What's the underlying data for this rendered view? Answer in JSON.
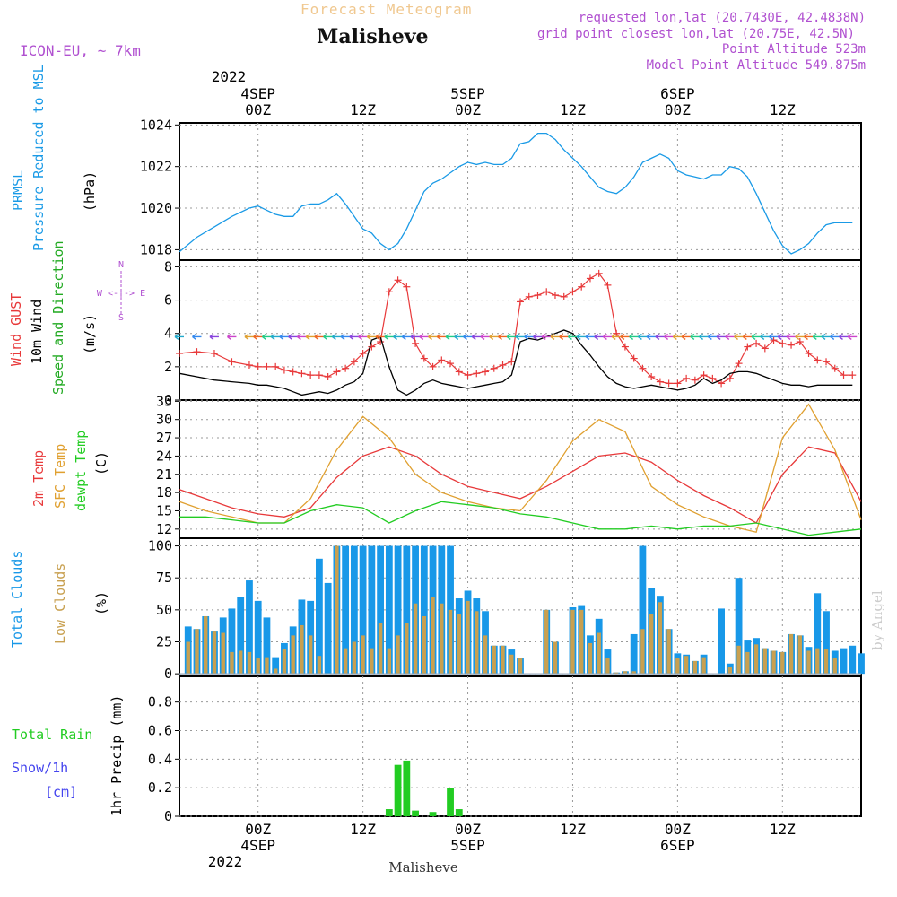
{
  "header": {
    "product": "Forecast Meteogram",
    "location": "Malisheve",
    "model": "ICON-EU, ~ 7km",
    "requested": "requested lon,lat (20.7430E, 42.4838N)",
    "grid_point": "grid point closest lon,lat (20.75E, 42.5N)",
    "point_altitude": "Point Altitude 523m",
    "model_altitude": "Model Point Altitude 549.875m"
  },
  "footer": {
    "location": "Malisheve",
    "credit": "by Angel"
  },
  "time_axis": {
    "year": "2022",
    "ticks": [
      {
        "hour": 0,
        "label": "00Z",
        "date": "4SEP"
      },
      {
        "hour": 12,
        "label": "12Z",
        "date": ""
      },
      {
        "hour": 24,
        "label": "00Z",
        "date": "5SEP"
      },
      {
        "hour": 36,
        "label": "12Z",
        "date": ""
      },
      {
        "hour": 48,
        "label": "00Z",
        "date": "6SEP"
      },
      {
        "hour": 60,
        "label": "12Z",
        "date": ""
      }
    ]
  },
  "panel_labels": {
    "pressure": [
      "PRMSL",
      "Pressure Reduced to MSL",
      "(hPa)"
    ],
    "wind": [
      "Wind GUST",
      "10m Wind",
      "Speed and Direction",
      "(m/s)"
    ],
    "compass": {
      "n": "N",
      "s": "S",
      "w": "W <-|-> E"
    },
    "temp": [
      "2m Temp",
      "SFC Temp",
      "dewpt Temp",
      "(C)"
    ],
    "cloud": [
      "Total Clouds",
      "Low Clouds",
      "(%)"
    ],
    "precip": [
      "Total  Rain",
      "Snow/1h",
      "[cm]",
      "1hr Precip (mm)"
    ]
  },
  "colors": {
    "pressure": "#1a9ae6",
    "gust": "#e8393a",
    "wind": "#000000",
    "t2m": "#e8393a",
    "sfc": "#e0a030",
    "dewpt": "#22cc22",
    "total_cloud": "#1898e8",
    "low_cloud": "#c8a050",
    "rain": "#22cc22",
    "snow": "#4444ee",
    "header_purple": "#b050d0",
    "header_orange": "#f0c890"
  },
  "chart_data": [
    {
      "type": "line",
      "name": "pressure",
      "ylabel": "(hPa)",
      "ylim": [
        1017.5,
        1024.1
      ],
      "yticks": [
        1018,
        1020,
        1022,
        1024
      ],
      "x_range_hours": [
        -9,
        69
      ],
      "series": [
        {
          "name": "PRMSL",
          "x": [
            -9,
            -7,
            -5,
            -3,
            -1,
            0,
            1,
            2,
            3,
            4,
            5,
            6,
            7,
            8,
            9,
            10,
            11,
            12,
            13,
            14,
            15,
            16,
            17,
            18,
            19,
            20,
            21,
            22,
            23,
            24,
            25,
            26,
            27,
            28,
            29,
            30,
            31,
            32,
            33,
            34,
            35,
            36,
            37,
            38,
            39,
            40,
            41,
            42,
            43,
            44,
            45,
            46,
            47,
            48,
            49,
            50,
            51,
            52,
            53,
            54,
            55,
            56,
            57,
            58,
            59,
            60,
            61,
            62,
            63,
            64,
            65,
            66,
            67,
            68
          ],
          "values": [
            1017.9,
            1018.6,
            1019.1,
            1019.6,
            1020.0,
            1020.1,
            1019.9,
            1019.7,
            1019.6,
            1019.6,
            1020.1,
            1020.2,
            1020.2,
            1020.4,
            1020.7,
            1020.2,
            1019.6,
            1019.0,
            1018.8,
            1018.3,
            1018.0,
            1018.3,
            1019.0,
            1019.9,
            1020.8,
            1021.2,
            1021.4,
            1021.7,
            1022.0,
            1022.2,
            1022.1,
            1022.2,
            1022.1,
            1022.1,
            1022.4,
            1023.1,
            1023.2,
            1023.6,
            1023.6,
            1023.3,
            1022.8,
            1022.4,
            1022.0,
            1021.5,
            1021.0,
            1020.8,
            1020.7,
            1021.0,
            1021.5,
            1022.2,
            1022.4,
            1022.6,
            1022.4,
            1021.8,
            1021.6,
            1021.5,
            1021.4,
            1021.6,
            1021.6,
            1022.0,
            1021.9,
            1021.5,
            1020.7,
            1019.8,
            1018.9,
            1018.2,
            1017.8,
            1018.0,
            1018.3,
            1018.8,
            1019.2,
            1019.3,
            1019.3,
            1019.3
          ]
        }
      ]
    },
    {
      "type": "line",
      "name": "wind",
      "ylabel": "(m/s)",
      "ylim": [
        0,
        8.4
      ],
      "yticks": [
        0,
        2,
        4,
        6,
        8
      ],
      "series": [
        {
          "name": "Wind GUST",
          "x": [
            -9,
            -7,
            -5,
            -3,
            -1,
            0,
            1,
            2,
            3,
            4,
            5,
            6,
            7,
            8,
            9,
            10,
            11,
            12,
            13,
            14,
            15,
            16,
            17,
            18,
            19,
            20,
            21,
            22,
            23,
            24,
            25,
            26,
            27,
            28,
            29,
            30,
            31,
            32,
            33,
            34,
            35,
            36,
            37,
            38,
            39,
            40,
            41,
            42,
            43,
            44,
            45,
            46,
            47,
            48,
            49,
            50,
            51,
            52,
            53,
            54,
            55,
            56,
            57,
            58,
            59,
            60,
            61,
            62,
            63,
            64,
            65,
            66,
            67,
            68
          ],
          "values": [
            2.8,
            2.9,
            2.8,
            2.3,
            2.1,
            2.0,
            2.0,
            2.0,
            1.8,
            1.7,
            1.6,
            1.5,
            1.5,
            1.4,
            1.7,
            1.9,
            2.3,
            2.8,
            3.2,
            3.5,
            6.5,
            7.2,
            6.8,
            3.4,
            2.5,
            2.0,
            2.4,
            2.2,
            1.7,
            1.5,
            1.6,
            1.7,
            1.9,
            2.1,
            2.3,
            5.9,
            6.2,
            6.3,
            6.5,
            6.3,
            6.2,
            6.5,
            6.8,
            7.3,
            7.6,
            6.9,
            4.0,
            3.2,
            2.5,
            1.9,
            1.4,
            1.1,
            1.0,
            1.0,
            1.3,
            1.2,
            1.5,
            1.3,
            1.0,
            1.3,
            2.2,
            3.2,
            3.4,
            3.1,
            3.6,
            3.4,
            3.3,
            3.5,
            2.8,
            2.4,
            2.3,
            1.9,
            1.5,
            1.5
          ]
        },
        {
          "name": "10m Wind",
          "x": [
            -9,
            -7,
            -5,
            -3,
            -1,
            0,
            1,
            2,
            3,
            4,
            5,
            6,
            7,
            8,
            9,
            10,
            11,
            12,
            13,
            14,
            15,
            16,
            17,
            18,
            19,
            20,
            21,
            22,
            23,
            24,
            25,
            26,
            27,
            28,
            29,
            30,
            31,
            32,
            33,
            34,
            35,
            36,
            37,
            38,
            39,
            40,
            41,
            42,
            43,
            44,
            45,
            46,
            47,
            48,
            49,
            50,
            51,
            52,
            53,
            54,
            55,
            56,
            57,
            58,
            59,
            60,
            61,
            62,
            63,
            64,
            65,
            66,
            67,
            68
          ],
          "values": [
            1.6,
            1.4,
            1.2,
            1.1,
            1.0,
            0.9,
            0.9,
            0.8,
            0.7,
            0.5,
            0.3,
            0.4,
            0.5,
            0.4,
            0.6,
            0.9,
            1.1,
            1.6,
            3.6,
            3.8,
            2.0,
            0.6,
            0.3,
            0.6,
            1.0,
            1.2,
            1.0,
            0.9,
            0.8,
            0.7,
            0.8,
            0.9,
            1.0,
            1.1,
            1.5,
            3.5,
            3.7,
            3.6,
            3.8,
            4.0,
            4.2,
            4.0,
            3.3,
            2.7,
            2.0,
            1.4,
            1.0,
            0.8,
            0.7,
            0.8,
            0.9,
            0.8,
            0.7,
            0.6,
            0.7,
            0.9,
            1.3,
            1.0,
            1.2,
            1.6,
            1.7,
            1.7,
            1.6,
            1.4,
            1.2,
            1.0,
            0.9,
            0.9,
            0.8,
            0.9,
            0.9,
            0.9,
            0.9,
            0.9
          ]
        }
      ]
    },
    {
      "type": "line",
      "name": "temperature",
      "ylabel": "(C)",
      "ylim": [
        10.5,
        33.2
      ],
      "yticks": [
        12,
        15,
        18,
        21,
        24,
        27,
        30,
        33
      ],
      "series": [
        {
          "name": "2m Temp",
          "x": [
            -9,
            -6,
            -3,
            0,
            3,
            6,
            9,
            12,
            15,
            18,
            21,
            24,
            27,
            30,
            33,
            36,
            39,
            42,
            45,
            48,
            51,
            54,
            57,
            60,
            63,
            66,
            69
          ],
          "values": [
            18.5,
            17.0,
            15.5,
            14.5,
            14.0,
            15.5,
            20.5,
            24.0,
            25.5,
            24.0,
            21.0,
            19.0,
            18.0,
            17.0,
            19.0,
            21.5,
            24.0,
            24.5,
            23.0,
            20.0,
            17.5,
            15.5,
            13.0,
            21.0,
            25.5,
            24.5,
            16.5
          ]
        },
        {
          "name": "SFC Temp",
          "x": [
            -9,
            -6,
            -3,
            0,
            3,
            6,
            9,
            12,
            15,
            18,
            21,
            24,
            27,
            30,
            33,
            36,
            39,
            42,
            45,
            48,
            51,
            54,
            57,
            60,
            63,
            66,
            69
          ],
          "values": [
            16.5,
            15.0,
            14.0,
            13.0,
            13.0,
            17.0,
            25.0,
            30.5,
            27.0,
            21.0,
            18.0,
            16.5,
            15.5,
            15.0,
            20.0,
            26.5,
            30.0,
            28.0,
            19.0,
            16.0,
            14.0,
            12.5,
            11.5,
            27.0,
            32.5,
            25.0,
            13.5
          ]
        },
        {
          "name": "dewpt Temp",
          "x": [
            -9,
            -6,
            -3,
            0,
            3,
            6,
            9,
            12,
            15,
            18,
            21,
            24,
            27,
            30,
            33,
            36,
            39,
            42,
            45,
            48,
            51,
            54,
            57,
            60,
            63,
            66,
            69
          ],
          "values": [
            14.0,
            14.0,
            13.5,
            13.0,
            13.0,
            15.0,
            16.0,
            15.5,
            13.0,
            15.0,
            16.5,
            16.0,
            15.5,
            14.5,
            14.0,
            13.0,
            12.0,
            12.0,
            12.5,
            12.0,
            12.5,
            12.5,
            13.0,
            12.0,
            11.0,
            11.5,
            12.0
          ]
        }
      ]
    },
    {
      "type": "bar",
      "name": "clouds",
      "ylabel": "(%)",
      "ylim": [
        -2,
        106
      ],
      "yticks": [
        0,
        25,
        50,
        75,
        100
      ],
      "x_start_hour": -8,
      "series": [
        {
          "name": "Total Clouds",
          "values": [
            37,
            35,
            45,
            33,
            44,
            51,
            60,
            73,
            57,
            44,
            13,
            24,
            37,
            58,
            57,
            90,
            71,
            100,
            100,
            100,
            100,
            100,
            100,
            100,
            100,
            100,
            100,
            100,
            100,
            100,
            100,
            59,
            65,
            59,
            49,
            22,
            22,
            19,
            12,
            0,
            0,
            50,
            25,
            0,
            52,
            53,
            30,
            43,
            19,
            1,
            2,
            31,
            100,
            67,
            61,
            35,
            16,
            15,
            10,
            15,
            0,
            51,
            8,
            75,
            26,
            28,
            20,
            18,
            17,
            31,
            30,
            21,
            63,
            49,
            18,
            20,
            22,
            16,
            0,
            0,
            0,
            0,
            0,
            0,
            0
          ]
        },
        {
          "name": "Low Clouds",
          "values": [
            25,
            35,
            45,
            33,
            32,
            17,
            18,
            17,
            12,
            13,
            4,
            19,
            30,
            38,
            30,
            14,
            0,
            100,
            20,
            25,
            30,
            20,
            40,
            20,
            30,
            40,
            55,
            45,
            60,
            55,
            50,
            47,
            57,
            49,
            30,
            22,
            22,
            15,
            12,
            0,
            0,
            50,
            25,
            0,
            50,
            50,
            24,
            32,
            12,
            1,
            2,
            2,
            35,
            47,
            56,
            35,
            12,
            14,
            10,
            13,
            0,
            0,
            5,
            22,
            17,
            23,
            20,
            18,
            17,
            31,
            30,
            18,
            20,
            19,
            12,
            0,
            0,
            0,
            0,
            0,
            0,
            0,
            0,
            0,
            0
          ]
        }
      ]
    },
    {
      "type": "bar",
      "name": "precipitation",
      "ylabel": "1hr Precip (mm)",
      "ylim": [
        0,
        0.98
      ],
      "yticks": [
        0,
        0.2,
        0.4,
        0.6,
        0.8
      ],
      "series": [
        {
          "name": "Total Rain",
          "x": [
            15,
            16,
            17,
            18,
            20,
            22,
            23
          ],
          "values": [
            0.05,
            0.36,
            0.39,
            0.04,
            0.03,
            0.2,
            0.05
          ]
        }
      ]
    }
  ]
}
